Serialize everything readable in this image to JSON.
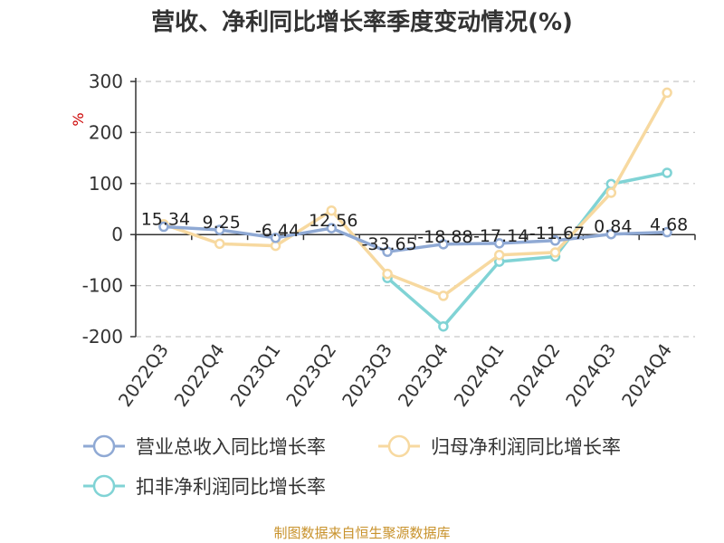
{
  "chart_data": {
    "type": "line",
    "title": "营收、净利同比增长率季度变动情况(%)",
    "ylabel": "%",
    "categories": [
      "2022Q3",
      "2022Q4",
      "2023Q1",
      "2023Q2",
      "2023Q3",
      "2023Q4",
      "2024Q1",
      "2024Q2",
      "2024Q3",
      "2024Q4"
    ],
    "ylim": [
      -200,
      300
    ],
    "yticks": [
      300,
      200,
      100,
      0,
      -100,
      -200
    ],
    "grid": true,
    "legend_position": "bottom",
    "series": [
      {
        "name": "营业总收入同比增长率",
        "color": "#8fa9d4",
        "values": [
          15.34,
          9.25,
          -6.44,
          12.56,
          -33.65,
          -18.88,
          -17.14,
          -11.67,
          0.84,
          4.68
        ],
        "labels": [
          "15.34",
          "9.25",
          "-6.44",
          "12.56",
          "-33.65",
          "-18.88",
          "-17.14",
          "-11.67",
          "0.84",
          "4.68"
        ]
      },
      {
        "name": "归母净利润同比增长率",
        "color": "#f7d9a0",
        "values": [
          20,
          -18,
          -22,
          47,
          -77,
          -120,
          -40,
          -35,
          82,
          278
        ]
      },
      {
        "name": "扣非净利润同比增长率",
        "color": "#80d3d5",
        "values": [
          null,
          null,
          null,
          null,
          -85,
          -180,
          -53,
          -43,
          99,
          121
        ]
      }
    ]
  },
  "source": "制图数据来自恒生聚源数据库"
}
